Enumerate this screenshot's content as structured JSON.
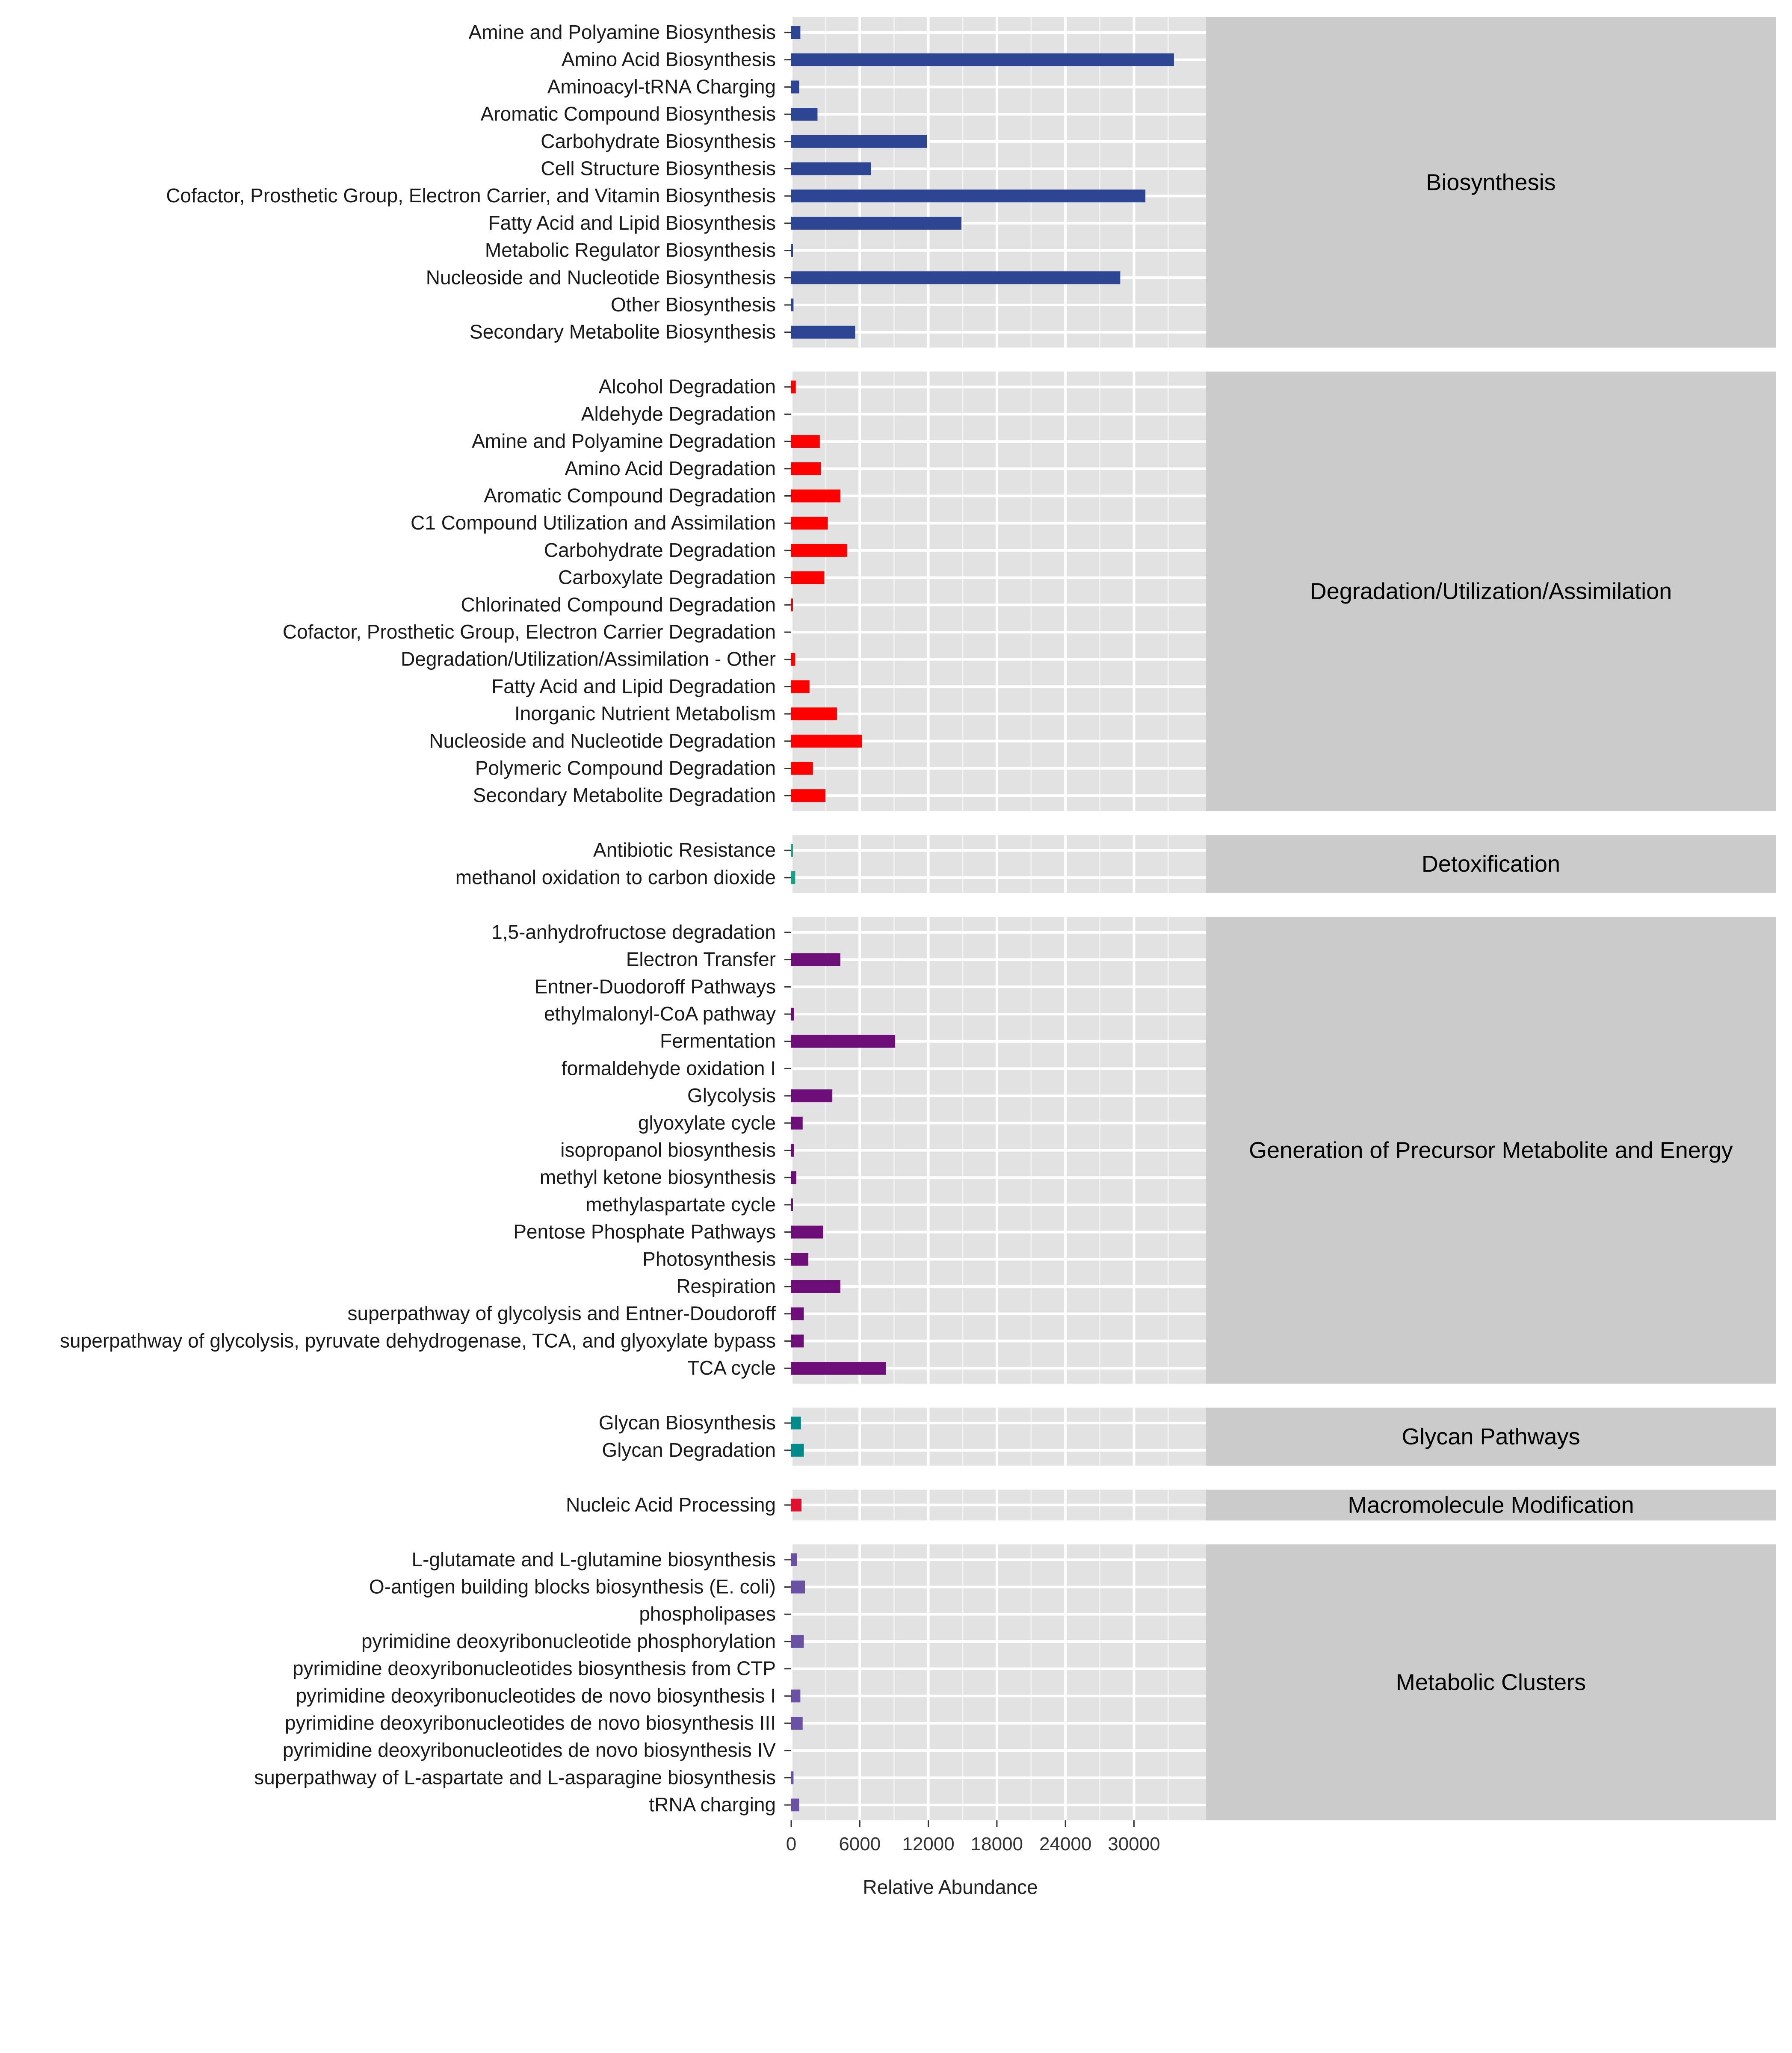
{
  "chart_data": {
    "type": "bar",
    "orientation": "horizontal",
    "title": "",
    "xlabel": "Relative Abundance",
    "ylabel": "",
    "xlim": [
      0,
      35000
    ],
    "xticks": [
      0,
      6000,
      12000,
      18000,
      24000,
      30000
    ],
    "xtick_labels": [
      "0",
      "6000",
      "12000",
      "18000",
      "24000",
      "30000"
    ],
    "grid": true,
    "legend": "none",
    "facets": [
      {
        "label": "Biosynthesis",
        "color": "#2E4593",
        "categories": [
          "Amine and Polyamine Biosynthesis",
          "Amino Acid Biosynthesis",
          "Aminoacyl-tRNA Charging",
          "Aromatic Compound Biosynthesis",
          "Carbohydrate Biosynthesis",
          "Cell Structure Biosynthesis",
          "Cofactor, Prosthetic Group, Electron Carrier, and Vitamin Biosynthesis",
          "Fatty Acid and Lipid Biosynthesis",
          "Metabolic Regulator Biosynthesis",
          "Nucleoside and Nucleotide Biosynthesis",
          "Other Biosynthesis",
          "Secondary Metabolite Biosynthesis"
        ],
        "values": [
          800,
          33500,
          700,
          2300,
          11900,
          7000,
          31000,
          14900,
          150,
          28800,
          200,
          5600
        ]
      },
      {
        "label": "Degradation/Utilization/Assimilation",
        "color": "#FF0000",
        "categories": [
          "Alcohol Degradation",
          "Aldehyde Degradation",
          "Amine and Polyamine Degradation",
          "Amino Acid Degradation",
          "Aromatic Compound Degradation",
          "C1 Compound Utilization and Assimilation",
          "Carbohydrate Degradation",
          "Carboxylate Degradation",
          "Chlorinated Compound Degradation",
          "Cofactor, Prosthetic Group, Electron Carrier Degradation",
          "Degradation/Utilization/Assimilation - Other",
          "Fatty Acid and Lipid Degradation",
          "Inorganic Nutrient Metabolism",
          "Nucleoside and Nucleotide Degradation",
          "Polymeric Compound Degradation",
          "Secondary Metabolite Degradation"
        ],
        "values": [
          400,
          0,
          2500,
          2600,
          4300,
          3200,
          4900,
          2900,
          80,
          0,
          350,
          1600,
          4000,
          6200,
          1900,
          3000
        ]
      },
      {
        "label": "Detoxification",
        "color": "#16A085",
        "categories": [
          "Antibiotic Resistance",
          "methanol oxidation to carbon dioxide"
        ],
        "values": [
          120,
          350
        ]
      },
      {
        "label": "Generation of Precursor Metabolite and Energy",
        "color": "#6E0F79",
        "categories": [
          "1,5-anhydrofructose degradation",
          "Electron Transfer",
          "Entner-Duodoroff Pathways",
          "ethylmalonyl-CoA pathway",
          "Fermentation",
          "formaldehyde oxidation I",
          "Glycolysis",
          "glyoxylate cycle",
          "isopropanol biosynthesis",
          "methyl ketone biosynthesis",
          "methylaspartate cycle",
          "Pentose Phosphate Pathways",
          "Photosynthesis",
          "Respiration",
          "superpathway of glycolysis and Entner-Doudoroff",
          "superpathway of glycolysis, pyruvate dehydrogenase, TCA, and glyoxylate bypass",
          "TCA cycle"
        ],
        "values": [
          0,
          4300,
          0,
          250,
          9100,
          0,
          3600,
          1000,
          250,
          450,
          120,
          2800,
          1500,
          4300,
          1100,
          1100,
          8300
        ]
      },
      {
        "label": "Glycan Pathways",
        "color": "#008B8B",
        "categories": [
          "Glycan Biosynthesis",
          "Glycan Degradation"
        ],
        "values": [
          850,
          1100
        ]
      },
      {
        "label": "Macromolecule Modification",
        "color": "#E0102E",
        "categories": [
          "Nucleic Acid Processing"
        ],
        "values": [
          900
        ]
      },
      {
        "label": "Metabolic Clusters",
        "color": "#6A51A3",
        "categories": [
          "L-glutamate and L-glutamine biosynthesis",
          "O-antigen building blocks biosynthesis (E. coli)",
          "phospholipases",
          "pyrimidine deoxyribonucleotide phosphorylation",
          "pyrimidine deoxyribonucleotides biosynthesis from CTP",
          "pyrimidine deoxyribonucleotides de novo biosynthesis I",
          "pyrimidine deoxyribonucleotides de novo biosynthesis III",
          "pyrimidine deoxyribonucleotides de novo biosynthesis IV",
          "superpathway of L-aspartate and L-asparagine biosynthesis",
          "tRNA charging"
        ],
        "values": [
          500,
          1200,
          0,
          1100,
          0,
          800,
          1000,
          0,
          200,
          700
        ]
      }
    ]
  }
}
